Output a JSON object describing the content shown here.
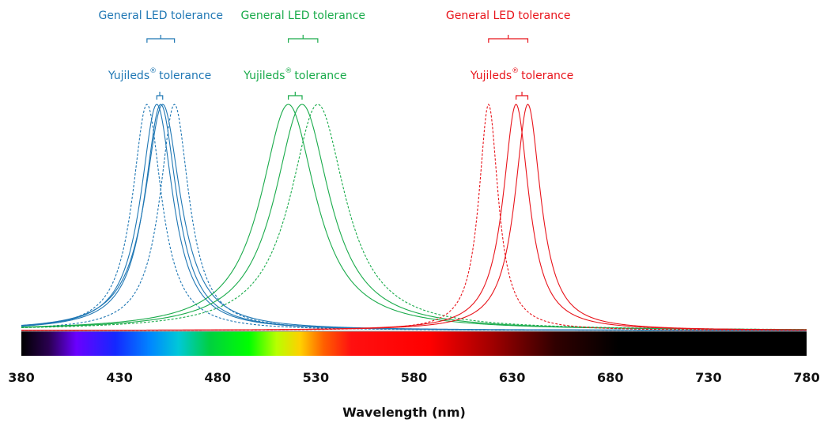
{
  "chart_data": {
    "type": "line",
    "title": "",
    "xlabel": "Wavelength (nm)",
    "ylabel": "",
    "xlim": [
      380,
      780
    ],
    "ylim": [
      0,
      1
    ],
    "xticks": [
      380,
      430,
      480,
      530,
      580,
      630,
      680,
      730,
      780
    ],
    "grid": false,
    "legend": "none",
    "groups": [
      {
        "key": "blue",
        "color": "#1f77b4",
        "general_label": "General LED tolerance",
        "yujileds_label": "Yujileds",
        "registered_mark": "®",
        "tolerance_word": "tolerance",
        "general_range": [
          444,
          458
        ],
        "yujileds_range": [
          449,
          452
        ],
        "curves": [
          {
            "peak": 444,
            "fwhm": 18,
            "style": "dashed"
          },
          {
            "peak": 449,
            "fwhm": 20,
            "style": "solid"
          },
          {
            "peak": 451,
            "fwhm": 20,
            "style": "solid"
          },
          {
            "peak": 452,
            "fwhm": 22,
            "style": "solid"
          },
          {
            "peak": 458,
            "fwhm": 18,
            "style": "dashed"
          }
        ]
      },
      {
        "key": "green",
        "color": "#1aab4b",
        "general_label": "General LED tolerance",
        "yujileds_label": "Yujileds",
        "registered_mark": "®",
        "tolerance_word": "tolerance",
        "general_range": [
          516,
          531
        ],
        "yujileds_range": [
          516,
          523
        ],
        "curves": [
          {
            "peak": 516,
            "fwhm": 34,
            "style": "solid"
          },
          {
            "peak": 523,
            "fwhm": 34,
            "style": "solid"
          },
          {
            "peak": 531,
            "fwhm": 34,
            "style": "dashed"
          }
        ]
      },
      {
        "key": "red",
        "color": "#e8141b",
        "general_label": "General LED tolerance",
        "yujileds_label": "Yujileds",
        "registered_mark": "®",
        "tolerance_word": "tolerance",
        "general_range": [
          618,
          638
        ],
        "yujileds_range": [
          632,
          638
        ],
        "curves": [
          {
            "peak": 618,
            "fwhm": 12,
            "style": "dashed"
          },
          {
            "peak": 632,
            "fwhm": 16,
            "style": "solid"
          },
          {
            "peak": 638,
            "fwhm": 16,
            "style": "solid"
          }
        ]
      }
    ]
  }
}
